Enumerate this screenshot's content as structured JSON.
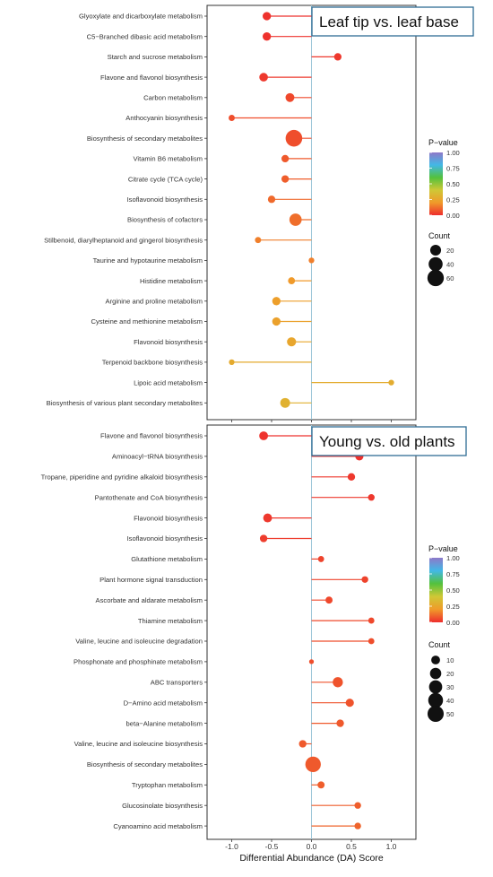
{
  "xlabel": "Differential Abundance (DA) Score",
  "x_ticks": [
    "-1.0",
    "-0.5",
    "0.0",
    "0.5",
    "1.0"
  ],
  "xlim": [
    -1.3,
    1.3
  ],
  "colors": {
    "pvalue_gradient": [
      "#ee2d2d",
      "#f09a2a",
      "#cfc836",
      "#53c13d",
      "#42b8e6",
      "#8e78c9"
    ]
  },
  "chart_data": [
    {
      "type": "lollipop",
      "title": "Leaf tip vs. leaf base",
      "xlabel": "Differential Abundance (DA) Score",
      "xlim": [
        -1.3,
        1.3
      ],
      "legend": {
        "color_title": "P−value",
        "color_ticks": [
          "1.00",
          "0.75",
          "0.50",
          "0.25",
          "0.00"
        ],
        "size_title": "Count",
        "size_labels": [
          "20",
          "40",
          "60"
        ],
        "size_values": [
          20,
          40,
          60
        ]
      },
      "categories": [
        "Glyoxylate and dicarboxylate metabolism",
        "C5−Branched dibasic acid metabolism",
        "Starch and sucrose metabolism",
        "Flavone and flavonol biosynthesis",
        "Carbon metabolism",
        "Anthocyanin biosynthesis",
        "Biosynthesis of secondary metabolites",
        "Vitamin B6 metabolism",
        "Citrate cycle (TCA cycle)",
        "Isoflavonoid biosynthesis",
        "Biosynthesis of cofactors",
        "Stilbenoid, diarylheptanoid and gingerol biosynthesis",
        "Taurine and hypotaurine metabolism",
        "Histidine metabolism",
        "Arginine and proline metabolism",
        "Cysteine and methionine metabolism",
        "Flavonoid biosynthesis",
        "Terpenoid backbone biosynthesis",
        "Lipoic acid metabolism",
        "Biosynthesis of various plant secondary metabolites"
      ],
      "da_score": [
        -0.56,
        -0.56,
        0.33,
        -0.6,
        -0.27,
        -1.0,
        -0.22,
        -0.33,
        -0.33,
        -0.5,
        -0.2,
        -0.67,
        0.0,
        -0.25,
        -0.44,
        -0.44,
        -0.25,
        -1.0,
        1.0,
        -0.33
      ],
      "pvalue": [
        0.01,
        0.01,
        0.02,
        0.02,
        0.05,
        0.06,
        0.06,
        0.08,
        0.09,
        0.11,
        0.12,
        0.15,
        0.15,
        0.2,
        0.22,
        0.23,
        0.25,
        0.27,
        0.28,
        0.3
      ],
      "count": [
        9,
        9,
        6,
        10,
        11,
        3,
        62,
        6,
        6,
        6,
        28,
        3,
        2,
        5,
        9,
        9,
        12,
        2,
        2,
        15
      ]
    },
    {
      "type": "lollipop",
      "title": "Young vs. old plants",
      "xlabel": "Differential Abundance (DA) Score",
      "xlim": [
        -1.3,
        1.3
      ],
      "legend": {
        "color_title": "P−value",
        "color_ticks": [
          "1.00",
          "0.75",
          "0.50",
          "0.25",
          "0.00"
        ],
        "size_title": "Count",
        "size_labels": [
          "10",
          "20",
          "30",
          "40",
          "50"
        ],
        "size_values": [
          10,
          20,
          30,
          40,
          50
        ]
      },
      "categories": [
        "Flavone and flavonol biosynthesis",
        "Aminoacyl−tRNA biosynthesis",
        "Tropane, piperidine and pyridine alkaloid biosynthesis",
        "Pantothenate and CoA biosynthesis",
        "Flavonoid biosynthesis",
        "Isoflavonoid biosynthesis",
        "Glutathione metabolism",
        "Plant hormone signal transduction",
        "Ascorbate and aldarate metabolism",
        "Thiamine metabolism",
        "Valine, leucine and isoleucine degradation",
        "Phosphonate and phosphinate metabolism",
        "ABC transporters",
        "D−Amino acid metabolism",
        "beta−Alanine metabolism",
        "Valine, leucine and isoleucine biosynthesis",
        "Biosynthesis of secondary metabolites",
        "Tryptophan metabolism",
        "Glucosinolate biosynthesis",
        "Cyanoamino acid metabolism"
      ],
      "da_score": [
        -0.6,
        0.6,
        0.5,
        0.75,
        -0.55,
        -0.6,
        0.12,
        0.67,
        0.22,
        0.75,
        0.75,
        0.0,
        0.33,
        0.48,
        0.36,
        -0.11,
        0.02,
        0.12,
        0.58,
        0.58
      ],
      "pvalue": [
        0.01,
        0.01,
        0.02,
        0.02,
        0.02,
        0.03,
        0.04,
        0.04,
        0.05,
        0.05,
        0.06,
        0.06,
        0.07,
        0.07,
        0.08,
        0.08,
        0.08,
        0.09,
        0.09,
        0.1
      ],
      "count": [
        10,
        8,
        6,
        4,
        10,
        6,
        3,
        4,
        5,
        3,
        3,
        1,
        15,
        8,
        6,
        6,
        45,
        5,
        4,
        4
      ]
    }
  ]
}
